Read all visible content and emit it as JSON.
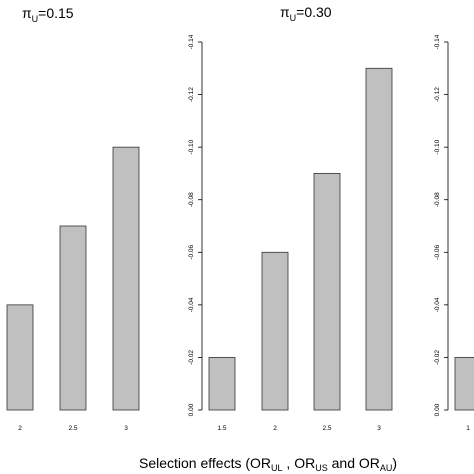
{
  "xlabel_parts": [
    "Selection effects (OR",
    "UL",
    " , OR",
    "US",
    " and OR",
    "AU",
    ")"
  ],
  "chart_data": [
    {
      "type": "bar",
      "title_base": "π",
      "title_sub": "U",
      "title_value": "=0.15",
      "categories": [
        "2",
        "2.5",
        "3"
      ],
      "values": [
        0.04,
        0.07,
        0.1
      ],
      "yticks": [],
      "ylim": [
        0,
        0.14
      ],
      "y_reversed": true,
      "grid": false
    },
    {
      "type": "bar",
      "title_base": "π",
      "title_sub": "U",
      "title_value": "=0.30",
      "categories": [
        "1.5",
        "2",
        "2.5",
        "3"
      ],
      "values": [
        0.02,
        0.06,
        0.09,
        0.13
      ],
      "yticks": [
        "0.00",
        "-0.02",
        "-0.04",
        "-0.06",
        "-0.08",
        "-0.10",
        "-0.12",
        "-0.14"
      ],
      "ylim": [
        0,
        0.14
      ],
      "y_reversed": true,
      "grid": false
    },
    {
      "type": "bar",
      "title_base": "",
      "title_sub": "",
      "title_value": "",
      "categories": [
        "1"
      ],
      "values": [
        0.02
      ],
      "yticks": [
        "0.00",
        "-0.02",
        "-0.04",
        "-0.06",
        "-0.08",
        "-0.10",
        "-0.12",
        "-0.14"
      ],
      "ylim": [
        0,
        0.14
      ],
      "y_reversed": true,
      "grid": false
    }
  ],
  "colors": {
    "bar_fill": "#c0c0c0",
    "bar_stroke": "#333333",
    "axis": "#000000"
  }
}
